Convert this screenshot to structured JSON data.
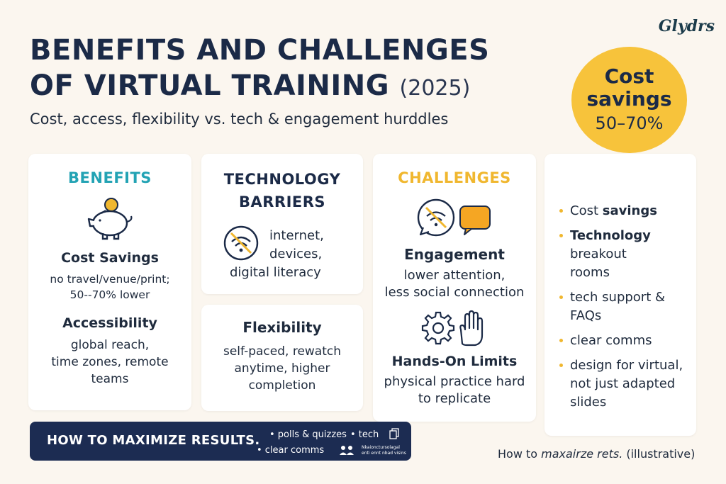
{
  "brand": "Glydrs",
  "title": {
    "line1": "BENEFITS AND CHALLENGES",
    "line2": "OF VIRTUAL TRAINING",
    "year": "(2025)"
  },
  "subtitle": "Cost, access, flexibility vs. tech & engagement hurddles",
  "badge": {
    "line1": "Cost",
    "line2": "savings",
    "line3": "50–70%"
  },
  "colors": {
    "gold": "#f7c33b",
    "navy": "#1b2a47",
    "teal": "#23a3b4",
    "background": "#fbf6ef"
  },
  "benefits": {
    "heading": "BENEFITS",
    "icon": "piggy-bank-icon",
    "cost_title": "Cost Savings",
    "cost_line1": "no travel/venue/print;",
    "cost_line2": "50--70% lower",
    "access_title": "Accessibility",
    "access_line1": "global reach,",
    "access_line2": "time zones, remote",
    "access_line3": "teams"
  },
  "tech": {
    "heading_line1": "TECHNOLOGY",
    "heading_line2": "BARRIERS",
    "icon": "no-wifi-icon",
    "line1": "internet,",
    "line2": "devices,",
    "line3": "digital literacy"
  },
  "flex": {
    "title": "Flexibility",
    "line1": "self-paced, rewatch",
    "line2": "anytime, higher",
    "line3": "completion"
  },
  "challenges": {
    "heading": "CHALLENGES",
    "engagement_icon": "no-wifi-chat-icon",
    "engagement_title": "Engagement",
    "engagement_line1": "lower attention,",
    "engagement_line2": "less social connection",
    "hands_icon": "gear-hand-icon",
    "hands_title": "Hands-On Limits",
    "hands_line1": "physical practice hard",
    "hands_line2": "to replicate"
  },
  "tips": [
    {
      "prefix": "Cost ",
      "strong": "savings",
      "lines": []
    },
    {
      "prefix": "",
      "strong": "Technology",
      "lines": [
        "breakout",
        "rooms"
      ]
    },
    {
      "prefix": "tech support &",
      "strong": "",
      "lines": [
        "FAQs"
      ]
    },
    {
      "prefix": "clear comms",
      "strong": "",
      "lines": []
    },
    {
      "prefix": "design for virtual,",
      "strong": "",
      "lines": [
        "not just adapted",
        "slides"
      ]
    }
  ],
  "banner": {
    "title": "HOW TO MAXIMIZE RESULTS.",
    "item1": "• polls & quizzes",
    "item2": "• tech",
    "item3": "• clear comms",
    "tiny1": "Nkaionctursolagal",
    "tiny2": "enti ennt nbad visins"
  },
  "footnote": {
    "main": "How to ",
    "italic": "maxairze rets.",
    "tail": " (illustrative)"
  }
}
